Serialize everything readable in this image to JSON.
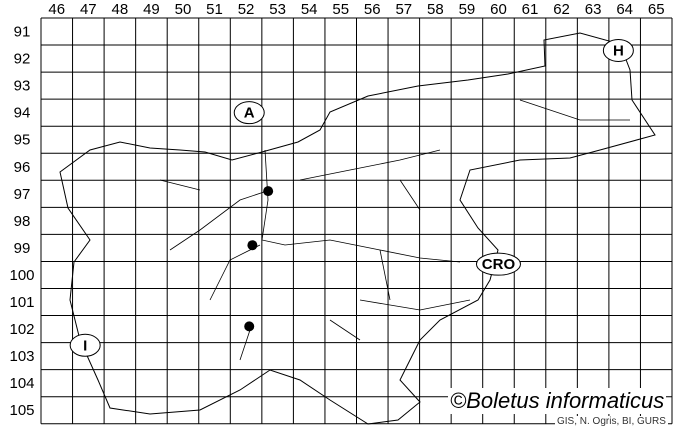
{
  "map": {
    "column_labels": [
      "46",
      "47",
      "48",
      "49",
      "50",
      "51",
      "52",
      "53",
      "54",
      "55",
      "56",
      "57",
      "58",
      "59",
      "60",
      "61",
      "62",
      "63",
      "64",
      "65"
    ],
    "row_labels": [
      "91",
      "92",
      "93",
      "94",
      "95",
      "96",
      "97",
      "98",
      "99",
      "100",
      "101",
      "102",
      "103",
      "104",
      "105"
    ],
    "country_labels": [
      {
        "text": "A",
        "col": 52.6,
        "row": 94.5
      },
      {
        "text": "H",
        "col": 64.3,
        "row": 92.2
      },
      {
        "text": "CRO",
        "col": 60.5,
        "row": 100.1
      },
      {
        "text": "I",
        "col": 47.4,
        "row": 103.1
      }
    ],
    "records": [
      {
        "col": 53.2,
        "row": 97.4
      },
      {
        "col": 52.7,
        "row": 99.4
      },
      {
        "col": 52.6,
        "row": 102.4
      }
    ],
    "copyright": "©Boletus informaticus",
    "credit": "GIS, N. Ogris, BI, GURS"
  }
}
